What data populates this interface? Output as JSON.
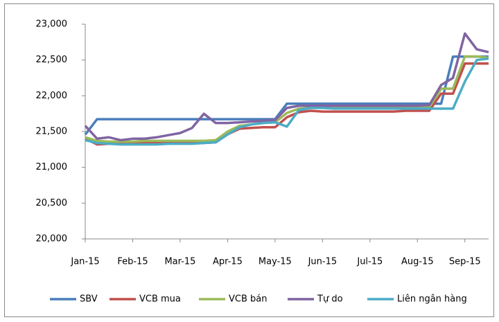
{
  "chart_data": {
    "type": "line",
    "categories": [
      "Jan-15",
      null,
      null,
      null,
      "Feb-15",
      null,
      null,
      null,
      "Mar-15",
      null,
      null,
      null,
      "Apr-15",
      null,
      null,
      null,
      "May-15",
      null,
      null,
      null,
      "Jun-15",
      null,
      null,
      null,
      "Jul-15",
      null,
      null,
      null,
      "Aug-15",
      null,
      null,
      null,
      "Sep-15",
      null,
      null
    ],
    "series": [
      {
        "name": "SBV",
        "color": "#4a7ebb",
        "values": [
          21458,
          21673,
          21673,
          21673,
          21673,
          21673,
          21673,
          21673,
          21673,
          21673,
          21673,
          21673,
          21673,
          21673,
          21673,
          21673,
          21673,
          21890,
          21890,
          21890,
          21890,
          21890,
          21890,
          21890,
          21890,
          21890,
          21890,
          21890,
          21890,
          21890,
          21890,
          22547,
          22547,
          22547,
          22547
        ]
      },
      {
        "name": "VCB mua",
        "color": "#c0504d",
        "values": [
          21400,
          21320,
          21330,
          21330,
          21330,
          21340,
          21340,
          21340,
          21340,
          21340,
          21340,
          21350,
          21460,
          21540,
          21550,
          21560,
          21560,
          21700,
          21770,
          21790,
          21780,
          21780,
          21780,
          21780,
          21780,
          21780,
          21780,
          21790,
          21790,
          21790,
          22030,
          22030,
          22450,
          22450,
          22450
        ]
      },
      {
        "name": "VCB bán",
        "color": "#9bbb59",
        "values": [
          21420,
          21370,
          21360,
          21360,
          21360,
          21370,
          21370,
          21370,
          21370,
          21370,
          21370,
          21380,
          21500,
          21580,
          21600,
          21620,
          21630,
          21760,
          21820,
          21830,
          21830,
          21830,
          21830,
          21830,
          21830,
          21840,
          21840,
          21840,
          21840,
          21840,
          22100,
          22100,
          22550,
          22550,
          22530
        ]
      },
      {
        "name": "Tự do",
        "color": "#8064a2",
        "values": [
          21580,
          21400,
          21420,
          21380,
          21400,
          21400,
          21420,
          21450,
          21480,
          21550,
          21750,
          21620,
          21620,
          21630,
          21640,
          21650,
          21660,
          21830,
          21860,
          21860,
          21860,
          21860,
          21860,
          21860,
          21860,
          21860,
          21860,
          21860,
          21860,
          21870,
          22150,
          22250,
          22870,
          22650,
          22610
        ]
      },
      {
        "name": "Liên ngân hàng",
        "color": "#4bacc6",
        "values": [
          21380,
          21340,
          21330,
          21320,
          21320,
          21320,
          21320,
          21330,
          21330,
          21330,
          21340,
          21350,
          21460,
          21560,
          21600,
          21620,
          21630,
          21570,
          21800,
          21830,
          21830,
          21820,
          21820,
          21820,
          21820,
          21820,
          21820,
          21820,
          21820,
          21820,
          21820,
          21820,
          22200,
          22500,
          22520
        ]
      }
    ],
    "ylim": [
      20000,
      23000
    ],
    "yticks": [
      {
        "value": 20000,
        "label": "20,000"
      },
      {
        "value": 20500,
        "label": "20,500"
      },
      {
        "value": 21000,
        "label": "21,000"
      },
      {
        "value": 21500,
        "label": "21,500"
      },
      {
        "value": 22000,
        "label": "22,000"
      },
      {
        "value": 22500,
        "label": "22,500"
      },
      {
        "value": 23000,
        "label": "23,000"
      }
    ],
    "legend": "bottom"
  }
}
